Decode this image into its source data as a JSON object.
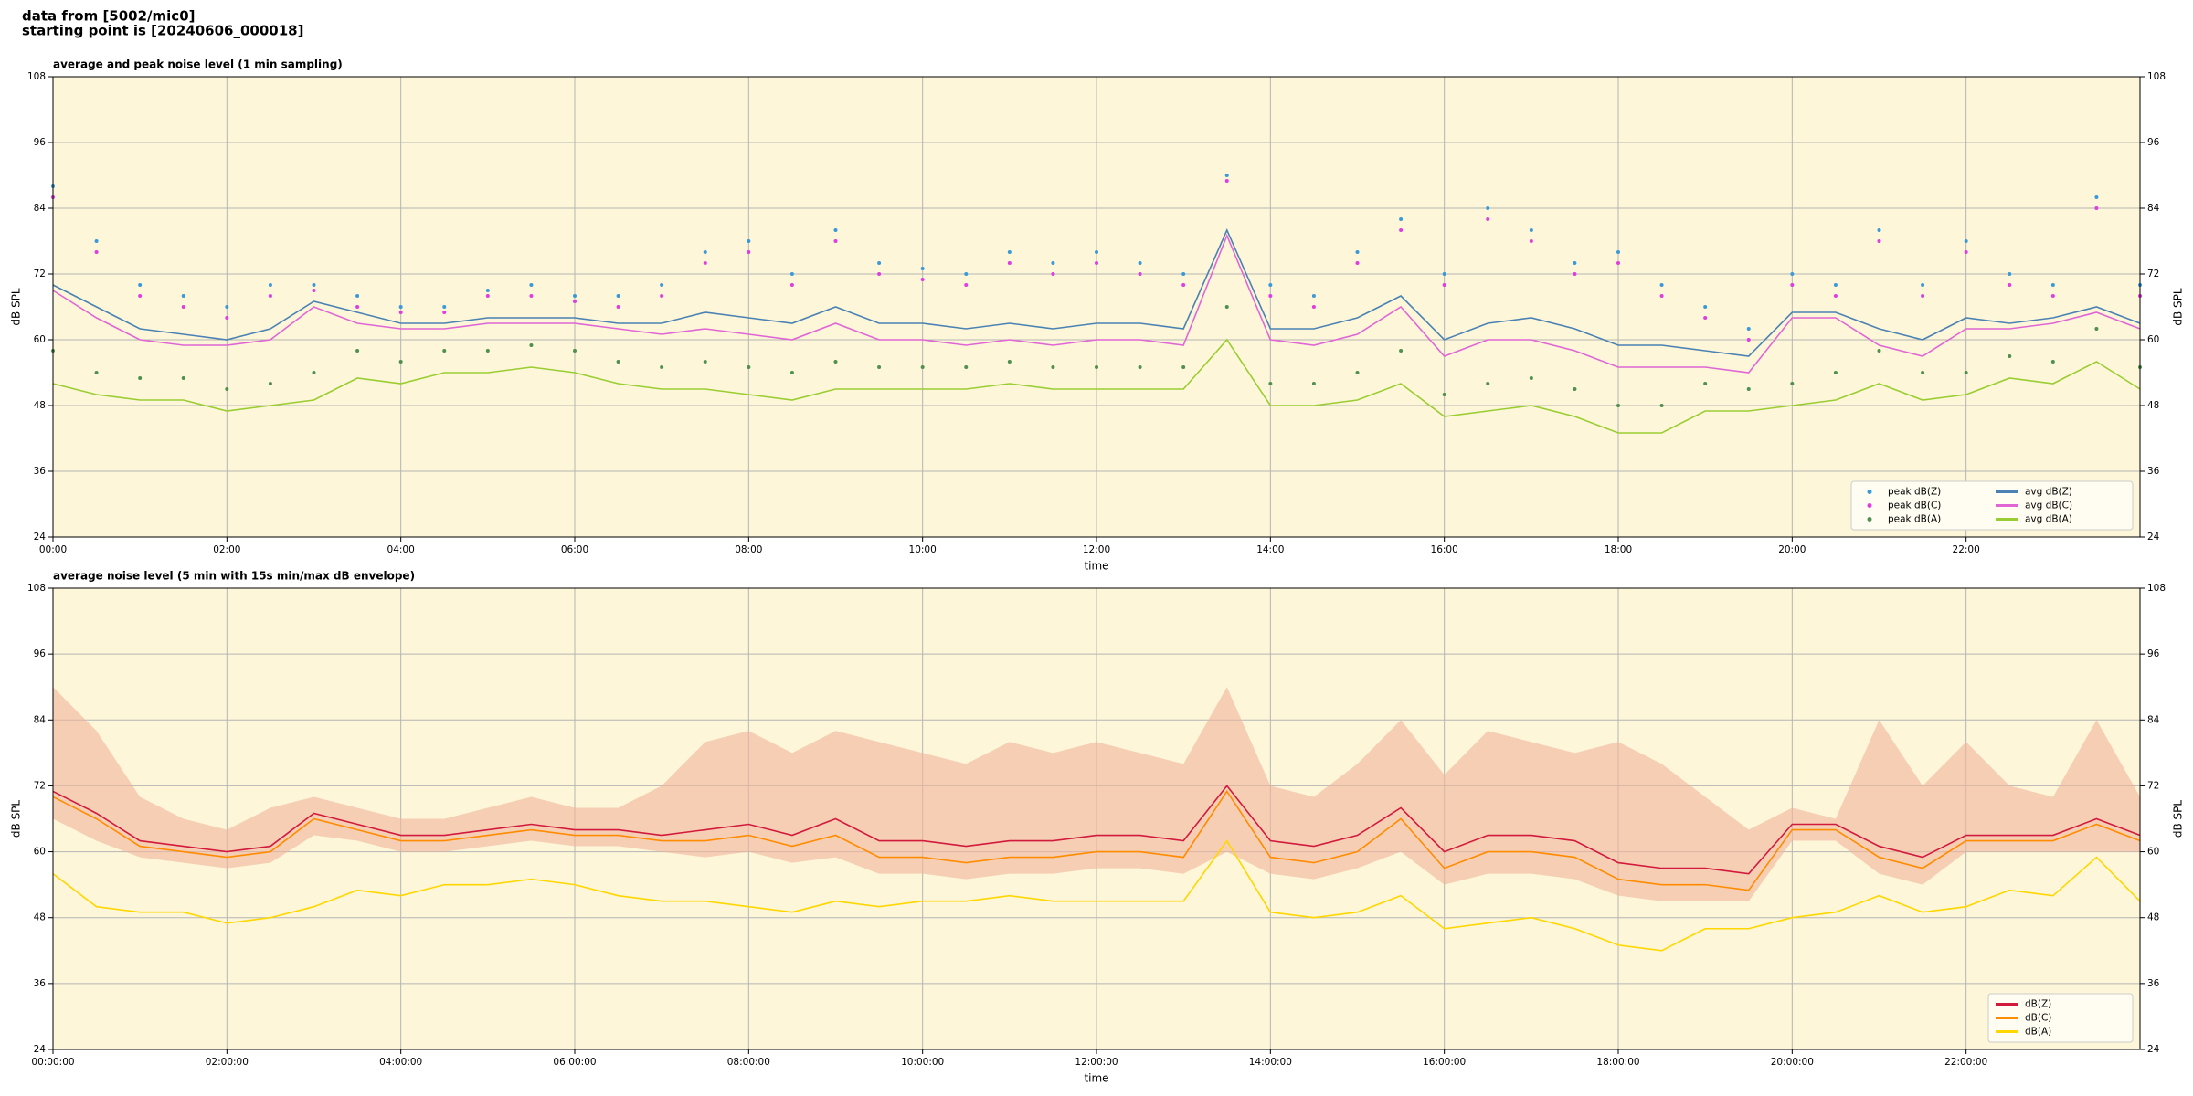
{
  "header": {
    "line1": "data from [5002/mic0]",
    "line2": "starting point is [20240606_000018]"
  },
  "chart_data": [
    {
      "type": "line",
      "title": "average and peak noise level (1 min sampling)",
      "x_label": "time",
      "y_label": "dB SPL",
      "legend": "lower right",
      "legend_columns": 2,
      "grid": true,
      "x": [
        0,
        0.5,
        1,
        1.5,
        2,
        2.5,
        3,
        3.5,
        4,
        4.5,
        5,
        5.5,
        6,
        6.5,
        7,
        7.5,
        8,
        8.5,
        9,
        9.5,
        10,
        10.5,
        11,
        11.5,
        12,
        12.5,
        13,
        13.5,
        14,
        14.5,
        15,
        15.5,
        16,
        16.5,
        17,
        17.5,
        18,
        18.5,
        19,
        19.5,
        20,
        20.5,
        21,
        21.5,
        22,
        22.5,
        23,
        23.5,
        24
      ],
      "xlim": [
        0,
        24
      ],
      "xticks": [
        {
          "value": 0,
          "label": "00:00"
        },
        {
          "value": 2,
          "label": "02:00"
        },
        {
          "value": 4,
          "label": "04:00"
        },
        {
          "value": 6,
          "label": "06:00"
        },
        {
          "value": 8,
          "label": "08:00"
        },
        {
          "value": 10,
          "label": "10:00"
        },
        {
          "value": 12,
          "label": "12:00"
        },
        {
          "value": 14,
          "label": "14:00"
        },
        {
          "value": 16,
          "label": "16:00"
        },
        {
          "value": 18,
          "label": "18:00"
        },
        {
          "value": 20,
          "label": "20:00"
        },
        {
          "value": 22,
          "label": "22:00"
        }
      ],
      "ylim": [
        24,
        108
      ],
      "yticks": [
        24,
        36,
        48,
        60,
        72,
        84,
        96,
        108
      ],
      "series": [
        {
          "name": "peak dB(Z)",
          "style": "points",
          "color": "#3a9ad9",
          "values": [
            88,
            78,
            70,
            68,
            66,
            70,
            70,
            68,
            66,
            66,
            69,
            70,
            68,
            68,
            70,
            76,
            78,
            72,
            80,
            74,
            73,
            72,
            76,
            74,
            76,
            74,
            72,
            90,
            70,
            68,
            76,
            82,
            72,
            84,
            80,
            74,
            76,
            70,
            66,
            62,
            72,
            70,
            80,
            70,
            78,
            72,
            70,
            86,
            70
          ]
        },
        {
          "name": "peak dB(C)",
          "style": "points",
          "color": "#e03ce0",
          "values": [
            86,
            76,
            68,
            66,
            64,
            68,
            69,
            66,
            65,
            65,
            68,
            68,
            67,
            66,
            68,
            74,
            76,
            70,
            78,
            72,
            71,
            70,
            74,
            72,
            74,
            72,
            70,
            89,
            68,
            66,
            74,
            80,
            70,
            82,
            78,
            72,
            74,
            68,
            64,
            60,
            70,
            68,
            78,
            68,
            76,
            70,
            68,
            84,
            68
          ]
        },
        {
          "name": "peak dB(A)",
          "style": "points",
          "color": "#4f8f4f",
          "values": [
            58,
            54,
            53,
            53,
            51,
            52,
            54,
            58,
            56,
            58,
            58,
            59,
            58,
            56,
            55,
            56,
            55,
            54,
            56,
            55,
            55,
            55,
            56,
            55,
            55,
            55,
            55,
            66,
            52,
            52,
            54,
            58,
            50,
            52,
            53,
            51,
            48,
            48,
            52,
            51,
            52,
            54,
            58,
            54,
            54,
            57,
            56,
            62,
            55
          ]
        },
        {
          "name": "avg dB(Z)",
          "style": "line",
          "color": "#4a82b4",
          "values": [
            70,
            66,
            62,
            61,
            60,
            62,
            67,
            65,
            63,
            63,
            64,
            64,
            64,
            63,
            63,
            65,
            64,
            63,
            66,
            63,
            63,
            62,
            63,
            62,
            63,
            63,
            62,
            80,
            62,
            62,
            64,
            68,
            60,
            63,
            64,
            62,
            59,
            59,
            58,
            57,
            65,
            65,
            62,
            60,
            64,
            63,
            64,
            66,
            63
          ]
        },
        {
          "name": "avg dB(C)",
          "style": "line",
          "color": "#e066d6",
          "values": [
            69,
            64,
            60,
            59,
            59,
            60,
            66,
            63,
            62,
            62,
            63,
            63,
            63,
            62,
            61,
            62,
            61,
            60,
            63,
            60,
            60,
            59,
            60,
            59,
            60,
            60,
            59,
            79,
            60,
            59,
            61,
            66,
            57,
            60,
            60,
            58,
            55,
            55,
            55,
            54,
            64,
            64,
            59,
            57,
            62,
            62,
            63,
            65,
            62
          ]
        },
        {
          "name": "avg dB(A)",
          "style": "line",
          "color": "#9acd32",
          "values": [
            52,
            50,
            49,
            49,
            47,
            48,
            49,
            53,
            52,
            54,
            54,
            55,
            54,
            52,
            51,
            51,
            50,
            49,
            51,
            51,
            51,
            51,
            52,
            51,
            51,
            51,
            51,
            60,
            48,
            48,
            49,
            52,
            46,
            47,
            48,
            46,
            43,
            43,
            47,
            47,
            48,
            49,
            52,
            49,
            50,
            53,
            52,
            56,
            51
          ]
        }
      ]
    },
    {
      "type": "line",
      "title": "average noise level (5 min with 15s min/max dB envelope)",
      "x_label": "time",
      "y_label": "dB SPL",
      "legend": "lower right",
      "legend_columns": 1,
      "grid": true,
      "x": [
        0,
        0.5,
        1,
        1.5,
        2,
        2.5,
        3,
        3.5,
        4,
        4.5,
        5,
        5.5,
        6,
        6.5,
        7,
        7.5,
        8,
        8.5,
        9,
        9.5,
        10,
        10.5,
        11,
        11.5,
        12,
        12.5,
        13,
        13.5,
        14,
        14.5,
        15,
        15.5,
        16,
        16.5,
        17,
        17.5,
        18,
        18.5,
        19,
        19.5,
        20,
        20.5,
        21,
        21.5,
        22,
        22.5,
        23,
        23.5,
        24
      ],
      "xlim": [
        0,
        24
      ],
      "xticks": [
        {
          "value": 0,
          "label": "00:00:00"
        },
        {
          "value": 2,
          "label": "02:00:00"
        },
        {
          "value": 4,
          "label": "04:00:00"
        },
        {
          "value": 6,
          "label": "06:00:00"
        },
        {
          "value": 8,
          "label": "08:00:00"
        },
        {
          "value": 10,
          "label": "10:00:00"
        },
        {
          "value": 12,
          "label": "12:00:00"
        },
        {
          "value": 14,
          "label": "14:00:00"
        },
        {
          "value": 16,
          "label": "16:00:00"
        },
        {
          "value": 18,
          "label": "18:00:00"
        },
        {
          "value": 20,
          "label": "20:00:00"
        },
        {
          "value": 22,
          "label": "22:00:00"
        }
      ],
      "ylim": [
        24,
        108
      ],
      "yticks": [
        24,
        36,
        48,
        60,
        72,
        84,
        96,
        108
      ],
      "envelope": {
        "color": "#f2b49c",
        "min": [
          66,
          62,
          59,
          58,
          57,
          58,
          63,
          62,
          60,
          60,
          61,
          62,
          61,
          61,
          60,
          59,
          60,
          58,
          59,
          56,
          56,
          55,
          56,
          56,
          57,
          57,
          56,
          60,
          56,
          55,
          57,
          60,
          54,
          56,
          56,
          55,
          52,
          51,
          51,
          51,
          62,
          62,
          56,
          54,
          60,
          60,
          60,
          60,
          60
        ],
        "max": [
          90,
          82,
          70,
          66,
          64,
          68,
          70,
          68,
          66,
          66,
          68,
          70,
          68,
          68,
          72,
          80,
          82,
          78,
          82,
          80,
          78,
          76,
          80,
          78,
          80,
          78,
          76,
          90,
          72,
          70,
          76,
          84,
          74,
          82,
          80,
          78,
          80,
          76,
          70,
          64,
          68,
          66,
          84,
          72,
          80,
          72,
          70,
          84,
          70
        ]
      },
      "series": [
        {
          "name": "dB(Z)",
          "style": "line",
          "color": "#d21a3c",
          "values": [
            71,
            67,
            62,
            61,
            60,
            61,
            67,
            65,
            63,
            63,
            64,
            65,
            64,
            64,
            63,
            64,
            65,
            63,
            66,
            62,
            62,
            61,
            62,
            62,
            63,
            63,
            62,
            72,
            62,
            61,
            63,
            68,
            60,
            63,
            63,
            62,
            58,
            57,
            57,
            56,
            65,
            65,
            61,
            59,
            63,
            63,
            63,
            66,
            63
          ]
        },
        {
          "name": "dB(C)",
          "style": "line",
          "color": "#ff8c00",
          "values": [
            70,
            66,
            61,
            60,
            59,
            60,
            66,
            64,
            62,
            62,
            63,
            64,
            63,
            63,
            62,
            62,
            63,
            61,
            63,
            59,
            59,
            58,
            59,
            59,
            60,
            60,
            59,
            71,
            59,
            58,
            60,
            66,
            57,
            60,
            60,
            59,
            55,
            54,
            54,
            53,
            64,
            64,
            59,
            57,
            62,
            62,
            62,
            65,
            62
          ]
        },
        {
          "name": "dB(A)",
          "style": "line",
          "color": "#ffd700",
          "values": [
            56,
            50,
            49,
            49,
            47,
            48,
            50,
            53,
            52,
            54,
            54,
            55,
            54,
            52,
            51,
            51,
            50,
            49,
            51,
            50,
            51,
            51,
            52,
            51,
            51,
            51,
            51,
            62,
            49,
            48,
            49,
            52,
            46,
            47,
            48,
            46,
            43,
            42,
            46,
            46,
            48,
            49,
            52,
            49,
            50,
            53,
            52,
            59,
            51
          ]
        }
      ]
    }
  ]
}
